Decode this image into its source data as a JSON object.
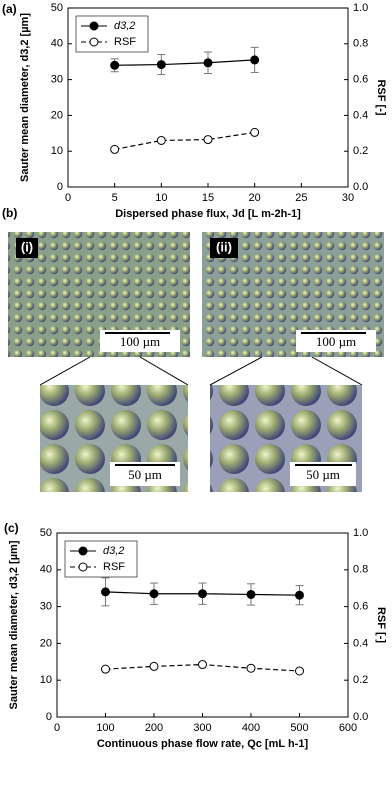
{
  "chart_data": [
    {
      "type": "line",
      "panel_label": "(a)",
      "xlabel": "Dispersed phase flux, Jd [L m-2h-1]",
      "ylabel": "Sauter mean diameter, d3,2 [µm]",
      "y2label": "RSF [-]",
      "x": [
        5,
        10,
        15,
        20
      ],
      "series": [
        {
          "name": "d3,2",
          "color": "#000000",
          "marker": "filled",
          "dashed": false,
          "values": [
            34,
            34.2,
            34.7,
            35.5
          ],
          "errors": [
            1.8,
            2.8,
            3.0,
            3.5
          ]
        },
        {
          "name": "RSF",
          "color": "#000000",
          "marker": "open",
          "dashed": true,
          "axis": "y2",
          "values": [
            0.21,
            0.26,
            0.265,
            0.305
          ]
        }
      ],
      "xlim": [
        0,
        30
      ],
      "xticks": [
        0,
        5,
        10,
        15,
        20,
        25,
        30
      ],
      "ylim": [
        0,
        50
      ],
      "yticks": [
        0,
        10,
        20,
        30,
        40,
        50
      ],
      "y2lim": [
        0,
        1
      ],
      "y2ticks": [
        {
          "value": 0,
          "label": "0.0"
        },
        0.2,
        0.4,
        0.6,
        0.8,
        {
          "value": 1,
          "label": "1.0"
        }
      ],
      "legend": "upper left"
    },
    {
      "type": "line",
      "panel_label": "(c)",
      "xlabel": "Continuous phase flow rate, Qc [mL h-1]",
      "ylabel": "Sauter mean diameter, d3,2 [µm]",
      "y2label": "RSF [-]",
      "x": [
        100,
        200,
        300,
        400,
        500
      ],
      "series": [
        {
          "name": "d3,2",
          "color": "#000000",
          "marker": "filled",
          "dashed": false,
          "values": [
            34,
            33.5,
            33.5,
            33.3,
            33.1
          ],
          "errors": [
            3.8,
            2.9,
            2.9,
            2.9,
            2.6
          ]
        },
        {
          "name": "RSF",
          "color": "#000000",
          "marker": "open",
          "dashed": true,
          "axis": "y2",
          "values": [
            0.26,
            0.275,
            0.285,
            0.265,
            0.25
          ]
        }
      ],
      "xlim": [
        0,
        600
      ],
      "xticks": [
        0,
        100,
        200,
        300,
        400,
        500,
        600
      ],
      "ylim": [
        0,
        50
      ],
      "yticks": [
        0,
        10,
        20,
        30,
        40,
        50
      ],
      "y2lim": [
        0,
        1
      ],
      "y2ticks": [
        {
          "value": 0,
          "label": "0.0"
        },
        0.2,
        0.4,
        0.6,
        0.8,
        {
          "value": 1,
          "label": "1.0"
        }
      ],
      "legend": "upper left"
    }
  ],
  "images": {
    "label": "(b)",
    "panels": [
      {
        "label": "(i)",
        "scale_top": "100 µm",
        "scale_bottom": "50 µm"
      },
      {
        "label": "(ii)",
        "scale_top": "100 µm",
        "scale_bottom": "50 µm"
      }
    ]
  }
}
